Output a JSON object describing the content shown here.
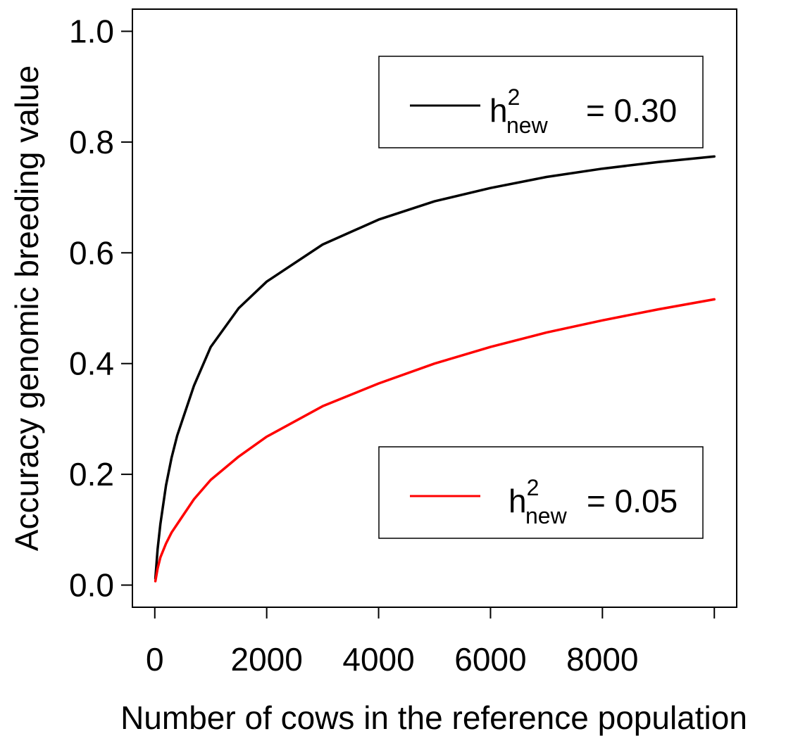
{
  "chart_data": {
    "type": "line",
    "title": "",
    "xlabel": "Number of cows in the reference population",
    "ylabel": "Accuracy genomic breeding value",
    "xlim": [
      -400,
      10400
    ],
    "ylim": [
      -0.04,
      1.04
    ],
    "x_ticks": [
      0,
      2000,
      4000,
      6000,
      8000
    ],
    "y_ticks": [
      0.0,
      0.2,
      0.4,
      0.6,
      0.8,
      1.0
    ],
    "x_tick_labels": [
      "0",
      "2000",
      "4000",
      "6000",
      "8000"
    ],
    "y_tick_labels": [
      "0.0",
      "0.2",
      "0.4",
      "0.6",
      "0.8",
      "1.0"
    ],
    "grid": false,
    "series": [
      {
        "h_base": "h",
        "h_sup": "2",
        "h_sub": "new",
        "value_text": "= 0.30",
        "color": "#000000",
        "legend_position": "top-right",
        "x": [
          10,
          50,
          100,
          200,
          300,
          400,
          500,
          700,
          1000,
          1500,
          2000,
          3000,
          4000,
          5000,
          6000,
          7000,
          8000,
          9000,
          10000
        ],
        "y": [
          0.012,
          0.065,
          0.11,
          0.18,
          0.23,
          0.27,
          0.3,
          0.36,
          0.43,
          0.5,
          0.548,
          0.615,
          0.66,
          0.693,
          0.717,
          0.737,
          0.752,
          0.764,
          0.774
        ]
      },
      {
        "h_base": "h",
        "h_sup": "2",
        "h_sub": "new",
        "value_text": "= 0.05",
        "color": "#ff0000",
        "legend_position": "bottom-right",
        "x": [
          10,
          50,
          100,
          200,
          300,
          500,
          700,
          1000,
          1500,
          2000,
          3000,
          4000,
          5000,
          6000,
          7000,
          8000,
          9000,
          10000
        ],
        "y": [
          0.007,
          0.03,
          0.05,
          0.075,
          0.095,
          0.125,
          0.155,
          0.19,
          0.232,
          0.268,
          0.323,
          0.364,
          0.4,
          0.43,
          0.456,
          0.478,
          0.498,
          0.516
        ]
      }
    ]
  }
}
